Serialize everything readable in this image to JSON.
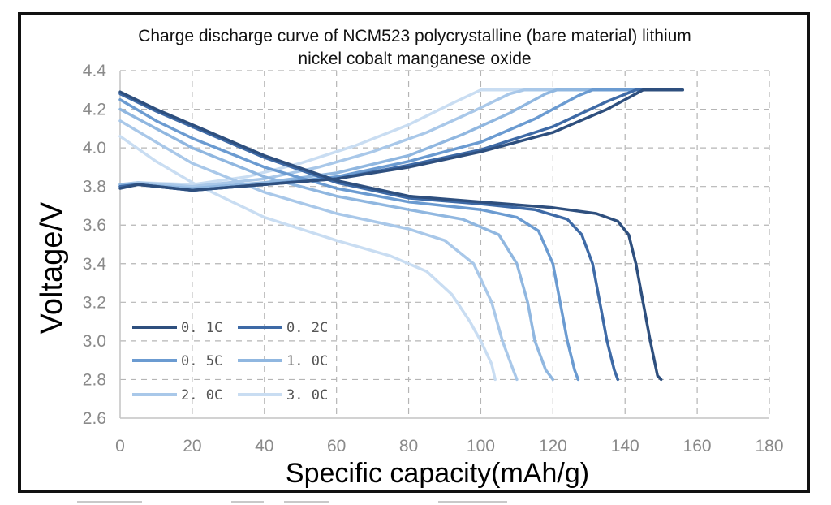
{
  "chart_data": {
    "type": "line",
    "title_lines": [
      "Charge discharge curve of NCM523 polycrystalline (bare material) lithium",
      "nickel cobalt manganese oxide"
    ],
    "xlabel": "Specific capacity(mAh/g)",
    "ylabel": "Voltage/V",
    "xlim": [
      0,
      180
    ],
    "ylim": [
      2.6,
      4.4
    ],
    "xticks": [
      "0",
      "20",
      "40",
      "60",
      "80",
      "100",
      "120",
      "140",
      "160",
      "180"
    ],
    "yticks": [
      "2.6",
      "2.8",
      "3.0",
      "3.2",
      "3.4",
      "3.6",
      "3.8",
      "4.0",
      "4.2",
      "4.4"
    ],
    "grid": true,
    "legend_position": "bottom-left",
    "series": [
      {
        "name": "0. 1C",
        "color": "#2e4f7e",
        "charge": [
          [
            0,
            3.79
          ],
          [
            5,
            3.81
          ],
          [
            20,
            3.78
          ],
          [
            40,
            3.81
          ],
          [
            60,
            3.84
          ],
          [
            80,
            3.9
          ],
          [
            100,
            3.98
          ],
          [
            120,
            4.08
          ],
          [
            135,
            4.2
          ],
          [
            145,
            4.3
          ],
          [
            156,
            4.3
          ]
        ],
        "discharge": [
          [
            0,
            4.29
          ],
          [
            10,
            4.2
          ],
          [
            20,
            4.12
          ],
          [
            40,
            3.96
          ],
          [
            60,
            3.83
          ],
          [
            80,
            3.75
          ],
          [
            100,
            3.72
          ],
          [
            120,
            3.69
          ],
          [
            132,
            3.66
          ],
          [
            138,
            3.62
          ],
          [
            141,
            3.55
          ],
          [
            143,
            3.4
          ],
          [
            145,
            3.2
          ],
          [
            147,
            3.0
          ],
          [
            149,
            2.82
          ],
          [
            150,
            2.8
          ]
        ]
      },
      {
        "name": "0. 2C",
        "color": "#3e6aa6",
        "charge": [
          [
            0,
            3.8
          ],
          [
            5,
            3.81
          ],
          [
            20,
            3.78
          ],
          [
            40,
            3.81
          ],
          [
            60,
            3.84
          ],
          [
            80,
            3.91
          ],
          [
            100,
            3.99
          ],
          [
            120,
            4.11
          ],
          [
            135,
            4.24
          ],
          [
            143,
            4.3
          ],
          [
            153,
            4.3
          ]
        ],
        "discharge": [
          [
            0,
            4.28
          ],
          [
            10,
            4.19
          ],
          [
            20,
            4.11
          ],
          [
            40,
            3.95
          ],
          [
            60,
            3.82
          ],
          [
            80,
            3.74
          ],
          [
            100,
            3.71
          ],
          [
            115,
            3.68
          ],
          [
            124,
            3.63
          ],
          [
            128,
            3.55
          ],
          [
            131,
            3.4
          ],
          [
            133,
            3.2
          ],
          [
            135,
            3.0
          ],
          [
            137,
            2.85
          ],
          [
            138,
            2.8
          ]
        ]
      },
      {
        "name": "0. 5C",
        "color": "#6b9bd1",
        "charge": [
          [
            0,
            3.8
          ],
          [
            5,
            3.81
          ],
          [
            20,
            3.78
          ],
          [
            40,
            3.81
          ],
          [
            60,
            3.85
          ],
          [
            80,
            3.93
          ],
          [
            100,
            4.03
          ],
          [
            115,
            4.15
          ],
          [
            127,
            4.27
          ],
          [
            131,
            4.3
          ],
          [
            148,
            4.3
          ]
        ],
        "discharge": [
          [
            0,
            4.25
          ],
          [
            10,
            4.14
          ],
          [
            20,
            4.05
          ],
          [
            40,
            3.9
          ],
          [
            60,
            3.79
          ],
          [
            80,
            3.72
          ],
          [
            100,
            3.68
          ],
          [
            110,
            3.64
          ],
          [
            116,
            3.57
          ],
          [
            120,
            3.4
          ],
          [
            122,
            3.2
          ],
          [
            124,
            3.0
          ],
          [
            126,
            2.85
          ],
          [
            127,
            2.8
          ]
        ]
      },
      {
        "name": "1. 0C",
        "color": "#90b7e0",
        "charge": [
          [
            0,
            3.81
          ],
          [
            5,
            3.81
          ],
          [
            20,
            3.79
          ],
          [
            40,
            3.82
          ],
          [
            60,
            3.87
          ],
          [
            80,
            3.96
          ],
          [
            95,
            4.07
          ],
          [
            108,
            4.18
          ],
          [
            118,
            4.28
          ],
          [
            121,
            4.3
          ],
          [
            136,
            4.3
          ]
        ],
        "discharge": [
          [
            0,
            4.2
          ],
          [
            10,
            4.1
          ],
          [
            20,
            4.0
          ],
          [
            40,
            3.85
          ],
          [
            60,
            3.75
          ],
          [
            80,
            3.68
          ],
          [
            95,
            3.63
          ],
          [
            105,
            3.55
          ],
          [
            110,
            3.4
          ],
          [
            113,
            3.2
          ],
          [
            115,
            3.0
          ],
          [
            118,
            2.85
          ],
          [
            120,
            2.8
          ]
        ]
      },
      {
        "name": "2. 0C",
        "color": "#a9c8e9",
        "charge": [
          [
            0,
            3.81
          ],
          [
            5,
            3.82
          ],
          [
            20,
            3.8
          ],
          [
            40,
            3.84
          ],
          [
            55,
            3.9
          ],
          [
            70,
            3.98
          ],
          [
            85,
            4.08
          ],
          [
            98,
            4.19
          ],
          [
            108,
            4.28
          ],
          [
            112,
            4.3
          ],
          [
            127,
            4.3
          ]
        ],
        "discharge": [
          [
            0,
            4.14
          ],
          [
            10,
            4.03
          ],
          [
            20,
            3.92
          ],
          [
            40,
            3.77
          ],
          [
            60,
            3.66
          ],
          [
            80,
            3.58
          ],
          [
            90,
            3.52
          ],
          [
            98,
            3.4
          ],
          [
            103,
            3.2
          ],
          [
            106,
            3.0
          ],
          [
            109,
            2.85
          ],
          [
            110,
            2.8
          ]
        ]
      },
      {
        "name": "3. 0C",
        "color": "#c9ddf2",
        "charge": [
          [
            0,
            3.81
          ],
          [
            5,
            3.82
          ],
          [
            20,
            3.81
          ],
          [
            35,
            3.85
          ],
          [
            50,
            3.92
          ],
          [
            65,
            4.01
          ],
          [
            80,
            4.12
          ],
          [
            92,
            4.23
          ],
          [
            100,
            4.3
          ],
          [
            118,
            4.3
          ]
        ],
        "discharge": [
          [
            0,
            4.06
          ],
          [
            10,
            3.93
          ],
          [
            20,
            3.82
          ],
          [
            40,
            3.64
          ],
          [
            60,
            3.52
          ],
          [
            75,
            3.44
          ],
          [
            85,
            3.36
          ],
          [
            92,
            3.24
          ],
          [
            97,
            3.1
          ],
          [
            100,
            3.0
          ],
          [
            103,
            2.88
          ],
          [
            104,
            2.8
          ]
        ]
      }
    ]
  }
}
